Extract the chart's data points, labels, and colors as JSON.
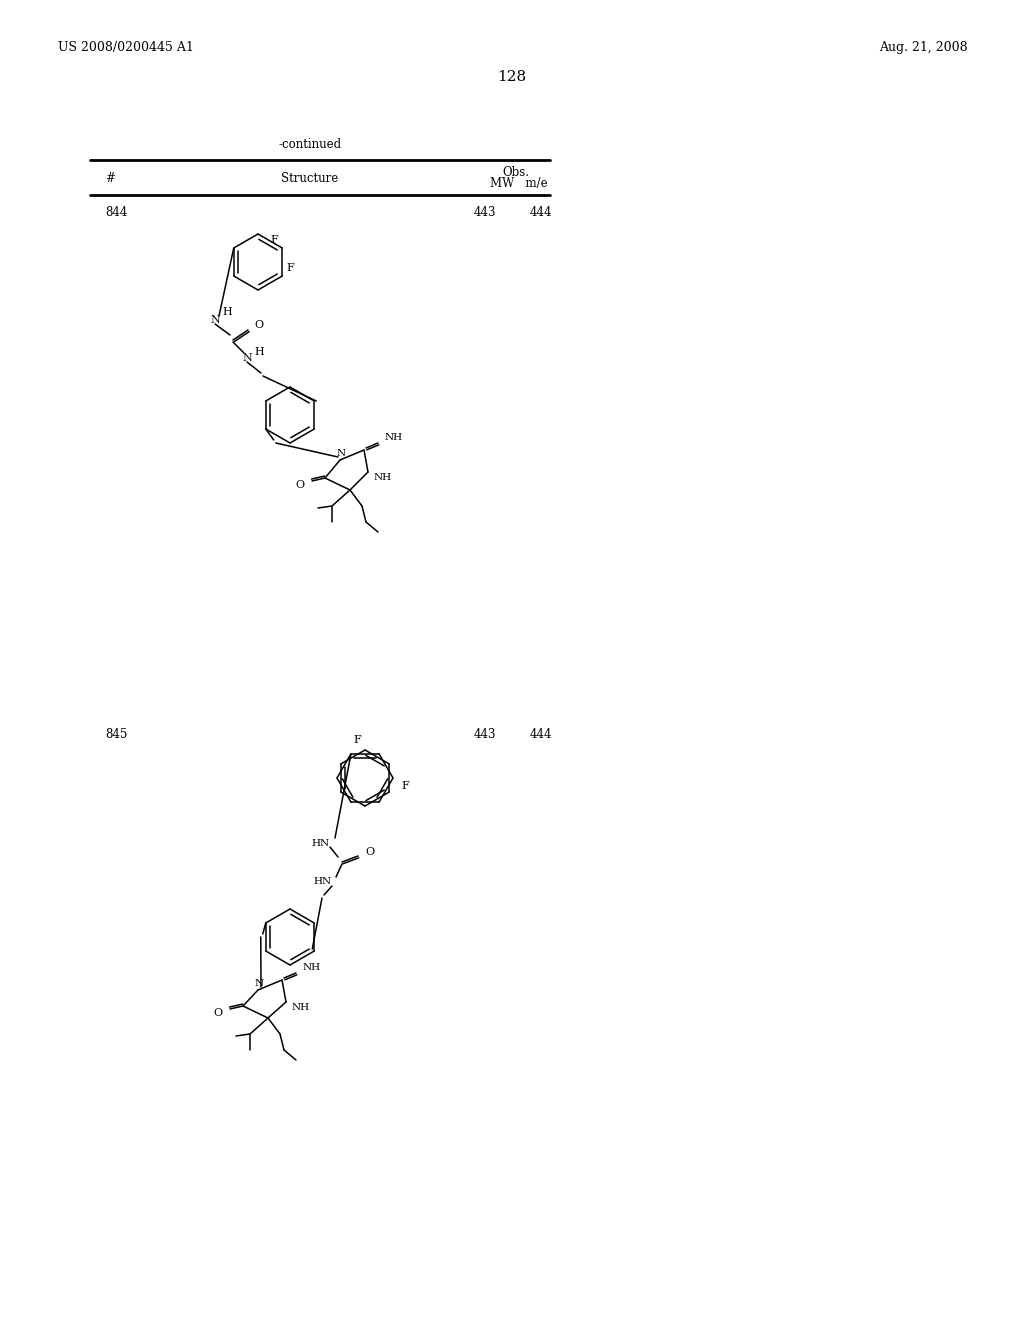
{
  "page_left_text": "US 2008/0200445 A1",
  "page_right_text": "Aug. 21, 2008",
  "page_number": "128",
  "continued_text": "-continued",
  "col_hash": "#",
  "col_structure": "Structure",
  "col_mw": "MW",
  "col_obs": "Obs.",
  "col_mie": "m/e",
  "row1_num": "844",
  "row1_mw": "443",
  "row1_mie": "444",
  "row2_num": "845",
  "row2_mw": "443",
  "row2_mie": "444",
  "bg_color": "#ffffff",
  "text_color": "#000000"
}
